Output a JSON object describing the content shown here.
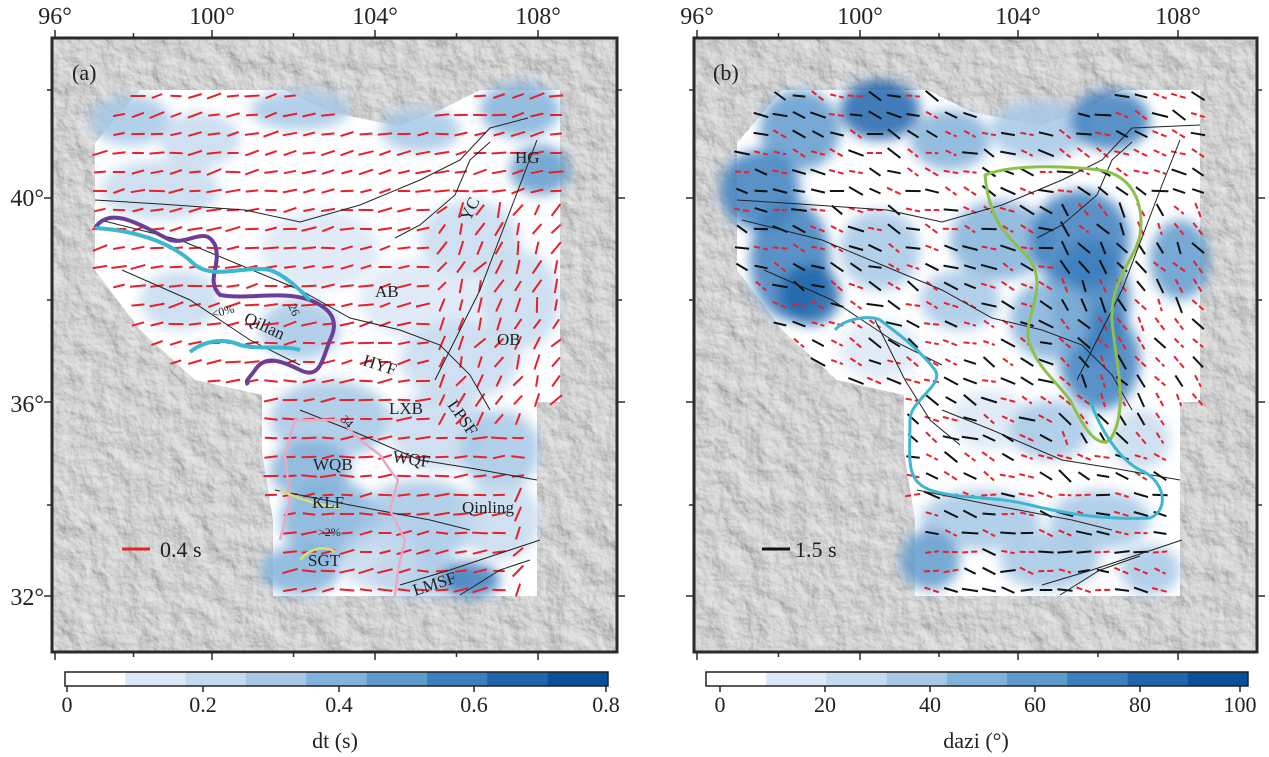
{
  "panels": [
    {
      "id": "a",
      "letter": "(a)",
      "lon_ticks": [
        "96°",
        "100°",
        "104°",
        "108°"
      ],
      "lat_ticks": [
        "40°",
        "36°",
        "32°"
      ],
      "colorbar": {
        "ticks": [
          "0",
          "0.2",
          "0.4",
          "0.6",
          "0.8"
        ],
        "label": "dt (s)",
        "colors": [
          "#ffffff",
          "#dbe8f6",
          "#c5daef",
          "#a6c8e6",
          "#82b1da",
          "#5f9acd",
          "#3c7fbe",
          "#2065ab",
          "#0b4f99"
        ]
      },
      "scale_bar": {
        "label": "0.4 s",
        "color": "#e8202a"
      },
      "bar_color": "#e8202a",
      "map_labels": [
        "HG",
        "YC",
        "AB",
        "OB",
        "Qilian",
        "<0%",
        "26",
        "HYF",
        "LXB",
        "LPSF",
        "34",
        "WQB",
        "WQF",
        "KLF",
        "Qinling",
        ">2%",
        "SGT",
        "LMSF"
      ]
    },
    {
      "id": "b",
      "letter": "(b)",
      "lon_ticks": [
        "96°",
        "100°",
        "104°",
        "108°"
      ],
      "lat_ticks": [
        "40°",
        "36°",
        "32°"
      ],
      "colorbar": {
        "ticks": [
          "0",
          "20",
          "40",
          "60",
          "80",
          "100"
        ],
        "label": "dazi (°)",
        "colors": [
          "#ffffff",
          "#dbe8f6",
          "#c5daef",
          "#a6c8e6",
          "#82b1da",
          "#5f9acd",
          "#3c7fbe",
          "#2065ab",
          "#0b4f99"
        ]
      },
      "scale_bar": {
        "label": "1.5 s",
        "color": "#111111"
      },
      "bar_colors": [
        "#111111",
        "#e8202a"
      ],
      "map_labels": []
    }
  ],
  "colors": {
    "topo_base": "#c4c4c4",
    "frame": "#2a2a2a",
    "fault": "#222222",
    "contour_cyan": "#3db6cf",
    "contour_purple": "#6b3f98",
    "contour_pink": "#e7a9c6",
    "contour_yellow": "#d6e074",
    "contour_green": "#8cc04a"
  }
}
